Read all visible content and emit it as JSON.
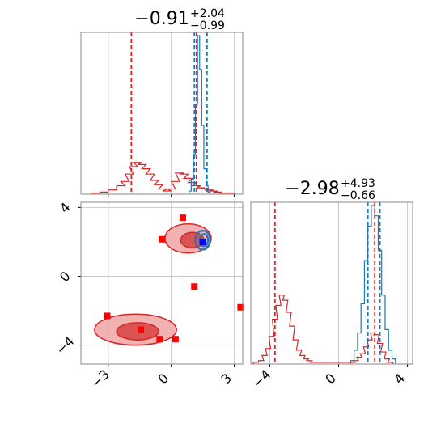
{
  "colors": {
    "red": "#d62728",
    "blue": "#1f77b4",
    "red_fill_outer": "#f2aaaa",
    "red_fill_inner": "#d94848",
    "grid": "#c8c8c8",
    "frame": "#888888"
  },
  "chart_data": [
    {
      "type": "histogram",
      "panel": "top-left",
      "title_value": "−0.91",
      "title_upper": "+2.04",
      "title_lower": "−0.99",
      "xlim": [
        -4.3,
        3.4
      ],
      "grid": true,
      "xticks": [
        -3,
        0,
        3
      ],
      "series": [
        {
          "color": "#d62728",
          "style": "step",
          "centers": [
            -3.6,
            -3.2,
            -2.8,
            -2.4,
            -2.2,
            -2.0,
            -1.8,
            -1.6,
            -1.4,
            -1.2,
            -1.0,
            -0.8,
            -0.6,
            -0.4,
            -0.2,
            0.0,
            0.2,
            0.4,
            0.6,
            0.8,
            1.0,
            1.2,
            1.4,
            1.6,
            1.8,
            2.0,
            2.2,
            2.4,
            2.8
          ],
          "values": [
            1,
            2,
            4,
            8,
            12,
            19,
            26,
            30,
            28,
            24,
            19,
            13,
            9,
            5,
            3,
            5,
            12,
            20,
            19,
            15,
            11,
            8,
            6,
            5,
            4,
            3,
            2,
            1,
            1
          ]
        },
        {
          "color": "#1f77b4",
          "style": "step",
          "centers": [
            0.9,
            1.0,
            1.1,
            1.2,
            1.3,
            1.4,
            1.5,
            1.6,
            1.7,
            1.8
          ],
          "values": [
            3,
            14,
            38,
            85,
            150,
            118,
            65,
            24,
            8,
            2
          ]
        }
      ],
      "vlines": [
        {
          "x": -1.9,
          "color": "#d62728"
        },
        {
          "x": 1.2,
          "color": "#d62728"
        },
        {
          "x": 1.1,
          "color": "#1f77b4"
        },
        {
          "x": 1.7,
          "color": "#1f77b4"
        }
      ]
    },
    {
      "type": "contour",
      "panel": "bottom-left",
      "xlim": [
        -4.3,
        3.4
      ],
      "ylim": [
        -5.1,
        4.3
      ],
      "grid": true,
      "xticks": [
        -3,
        0,
        3
      ],
      "yticks": [
        -4,
        0,
        4
      ],
      "contours": [
        {
          "level": "outer",
          "color": "#d62728",
          "cx": -1.7,
          "cy": -3.1,
          "rx": 1.95,
          "ry": 0.9
        },
        {
          "level": "inner",
          "color": "#d62728",
          "cx": -1.6,
          "cy": -3.2,
          "rx": 1.0,
          "ry": 0.5
        },
        {
          "level": "outer",
          "color": "#d62728",
          "cx": 0.8,
          "cy": 2.2,
          "rx": 1.1,
          "ry": 0.85
        },
        {
          "level": "inner",
          "color": "#d62728",
          "cx": 1.0,
          "cy": 2.1,
          "rx": 0.55,
          "ry": 0.45
        },
        {
          "level": "outer",
          "color": "#1f77b4",
          "cx": 1.5,
          "cy": 2.1,
          "rx": 0.35,
          "ry": 0.55
        },
        {
          "level": "inner",
          "color": "#1f77b4",
          "cx": 1.55,
          "cy": 2.1,
          "rx": 0.2,
          "ry": 0.35
        }
      ],
      "points": [
        {
          "x": 0.55,
          "y": 3.4,
          "color": "#d62728"
        },
        {
          "x": -0.45,
          "y": 2.15,
          "color": "#d62728"
        },
        {
          "x": 1.1,
          "y": -0.6,
          "color": "#d62728"
        },
        {
          "x": 3.3,
          "y": -1.8,
          "color": "#d62728"
        },
        {
          "x": -3.05,
          "y": -2.3,
          "color": "#d62728"
        },
        {
          "x": -1.45,
          "y": -3.1,
          "color": "#d62728"
        },
        {
          "x": -0.55,
          "y": -3.65,
          "color": "#d62728"
        },
        {
          "x": 0.2,
          "y": -3.65,
          "color": "#d62728"
        },
        {
          "x": 1.5,
          "y": 2.0,
          "color": "#1f77b4"
        }
      ]
    },
    {
      "type": "histogram",
      "panel": "bottom-right",
      "title_value": "−2.98",
      "title_upper": "+4.93",
      "title_lower": "−0.66",
      "xlim": [
        -5.1,
        4.3
      ],
      "grid": true,
      "xticks": [
        -4,
        0,
        4
      ],
      "series": [
        {
          "color": "#d62728",
          "style": "step",
          "centers": [
            -4.8,
            -4.5,
            -4.3,
            -4.1,
            -3.9,
            -3.7,
            -3.5,
            -3.3,
            -3.1,
            -2.9,
            -2.7,
            -2.5,
            -2.3,
            -2.1,
            -1.9,
            -1.7,
            -1.5,
            -1.3,
            0.8,
            1.0,
            1.2,
            1.4,
            1.6,
            1.8,
            2.0,
            2.2,
            2.4,
            2.6,
            2.8,
            3.0
          ],
          "values": [
            1,
            2,
            5,
            9,
            16,
            26,
            34,
            40,
            37,
            30,
            22,
            14,
            8,
            5,
            3,
            2,
            1,
            1,
            1,
            2,
            4,
            6,
            10,
            14,
            18,
            17,
            12,
            7,
            3,
            1
          ]
        },
        {
          "color": "#1f77b4",
          "style": "step",
          "centers": [
            0.8,
            1.0,
            1.2,
            1.4,
            1.6,
            1.8,
            2.0,
            2.2,
            2.4,
            2.6,
            2.8,
            3.0,
            3.2
          ],
          "values": [
            2,
            8,
            18,
            35,
            60,
            80,
            92,
            86,
            66,
            40,
            20,
            8,
            3
          ]
        }
      ],
      "vlines": [
        {
          "x": -3.7,
          "color": "#d62728"
        },
        {
          "x": 2.1,
          "color": "#d62728"
        },
        {
          "x": 1.7,
          "color": "#1f77b4"
        },
        {
          "x": 2.4,
          "color": "#1f77b4"
        }
      ]
    }
  ]
}
